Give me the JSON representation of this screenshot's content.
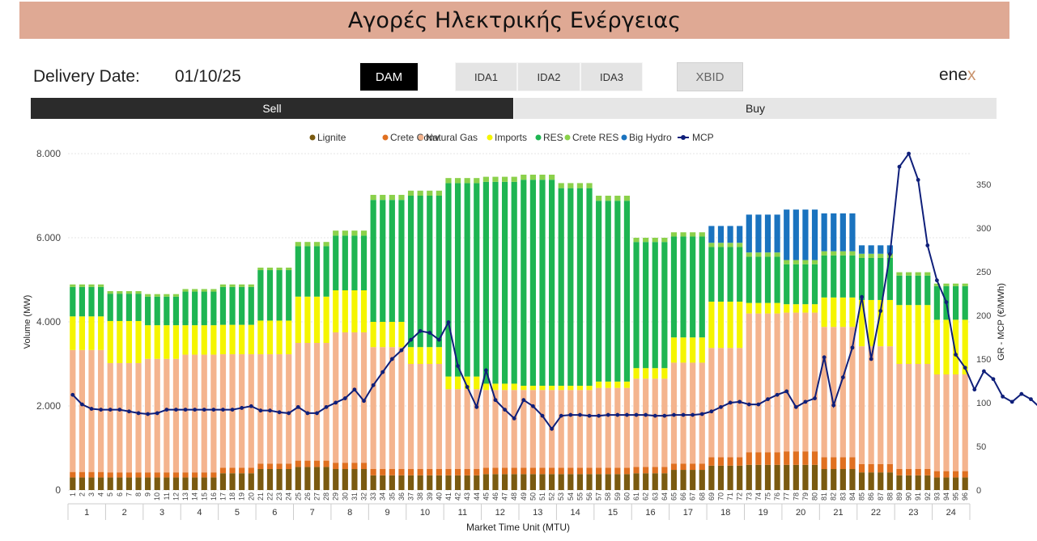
{
  "header": {
    "title": "Αγορές Ηλεκτρικής Ενέργειας"
  },
  "delivery": {
    "label": "Delivery Date:",
    "value": "01/10/25"
  },
  "market_buttons": [
    {
      "label": "DAM",
      "active": true
    },
    {
      "label": "IDA1",
      "active": false
    },
    {
      "label": "IDA2",
      "active": false
    },
    {
      "label": "IDA3",
      "active": false
    },
    {
      "label": "XBID",
      "active": false
    }
  ],
  "logo": {
    "text_a": "ene",
    "text_b": "x"
  },
  "tabs": {
    "sell": "Sell",
    "buy": "Buy"
  },
  "chart_data": {
    "type": "bar",
    "stacked": true,
    "xlabel": "Market Time Unit (MTU)",
    "ylabel": "Volume (MW)",
    "y2label": "GR - MCP (€/MWh)",
    "ylim": [
      0,
      8000
    ],
    "y2lim": [
      0,
      385
    ],
    "yticks": [
      "0",
      "2.000",
      "4.000",
      "6.000",
      "8.000"
    ],
    "y2ticks": [
      0,
      50,
      100,
      150,
      200,
      250,
      300,
      350
    ],
    "hours": [
      "1",
      "2",
      "3",
      "4",
      "5",
      "6",
      "7",
      "8",
      "9",
      "10",
      "11",
      "12",
      "13",
      "14",
      "15",
      "16",
      "17",
      "18",
      "19",
      "20",
      "21",
      "22",
      "23",
      "24"
    ],
    "legend": [
      {
        "name": "Lignite",
        "color": "#7a5a10"
      },
      {
        "name": "Crete Conv",
        "color": "#e07020"
      },
      {
        "name": "Natural Gas",
        "color": "#f4b48e"
      },
      {
        "name": "Imports",
        "color": "#f5f500"
      },
      {
        "name": "RES",
        "color": "#1eb552"
      },
      {
        "name": "Crete RES",
        "color": "#8bd14b"
      },
      {
        "name": "Big Hydro",
        "color": "#1a73bf"
      },
      {
        "name": "MCP",
        "color": "#0f1f7a"
      }
    ],
    "hourly": {
      "lignite": [
        300,
        300,
        300,
        300,
        400,
        500,
        550,
        500,
        350,
        350,
        350,
        380,
        380,
        380,
        380,
        400,
        480,
        580,
        600,
        600,
        500,
        420,
        350,
        300
      ],
      "crete_conv": [
        130,
        120,
        120,
        120,
        130,
        130,
        150,
        150,
        150,
        150,
        150,
        150,
        150,
        150,
        150,
        150,
        150,
        200,
        300,
        320,
        280,
        200,
        150,
        150
      ],
      "natural_gas": [
        2900,
        2600,
        2700,
        2800,
        2700,
        2600,
        2800,
        3100,
        2900,
        2500,
        1900,
        1850,
        1850,
        1850,
        1900,
        2100,
        2400,
        2600,
        3300,
        3300,
        3100,
        2800,
        2500,
        2300
      ],
      "imports": [
        800,
        1000,
        800,
        700,
        700,
        800,
        1100,
        1000,
        600,
        400,
        300,
        150,
        100,
        100,
        150,
        250,
        600,
        1100,
        250,
        200,
        700,
        1100,
        1400,
        1300
      ],
      "res": [
        700,
        650,
        680,
        800,
        900,
        1200,
        1200,
        1300,
        2900,
        3600,
        4600,
        4800,
        4900,
        4700,
        4300,
        3000,
        2400,
        1300,
        1100,
        950,
        1000,
        1000,
        700,
        800
      ],
      "crete_res": [
        60,
        60,
        60,
        60,
        60,
        60,
        100,
        120,
        120,
        120,
        120,
        120,
        120,
        120,
        120,
        100,
        100,
        100,
        100,
        100,
        100,
        100,
        80,
        60
      ],
      "big_hydro": [
        0,
        0,
        0,
        0,
        0,
        0,
        0,
        0,
        0,
        0,
        0,
        0,
        0,
        0,
        0,
        0,
        0,
        400,
        900,
        1200,
        900,
        200,
        0,
        0
      ]
    },
    "mcp": [
      109,
      98,
      93,
      92,
      92,
      92,
      90,
      88,
      87,
      88,
      92,
      92,
      92,
      92,
      92,
      92,
      92,
      92,
      94,
      96,
      91,
      91,
      89,
      88,
      95,
      88,
      88,
      95,
      100,
      105,
      115,
      102,
      120,
      135,
      150,
      160,
      172,
      182,
      180,
      172,
      192,
      142,
      118,
      95,
      137,
      103,
      92,
      82,
      103,
      96,
      85,
      70,
      85,
      86,
      86,
      85,
      85,
      86,
      86,
      86,
      86,
      86,
      85,
      85,
      86,
      86,
      86,
      87,
      90,
      95,
      100,
      101,
      98,
      98,
      104,
      109,
      113,
      95,
      101,
      105,
      152,
      97,
      129,
      163,
      221,
      150,
      205,
      270,
      370,
      385,
      355,
      280,
      240,
      215,
      155,
      140,
      115,
      136,
      127,
      107,
      101,
      110,
      104,
      94,
      88,
      95,
      93,
      92,
      88,
      86
    ]
  }
}
